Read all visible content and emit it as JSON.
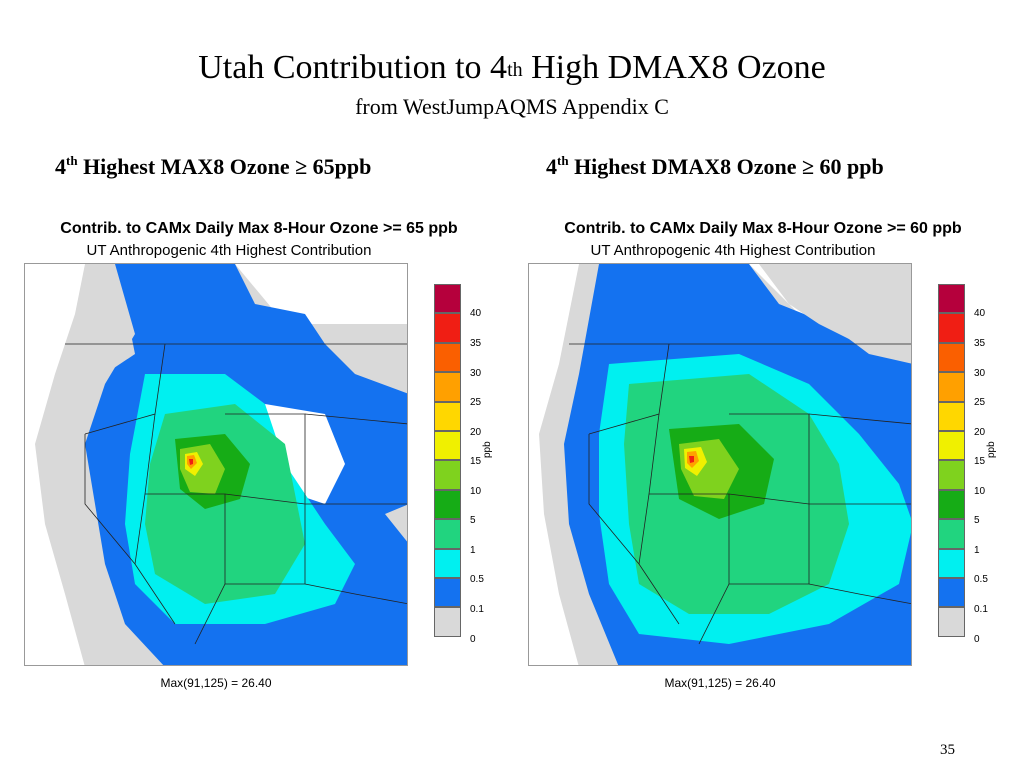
{
  "slide": {
    "title_pre": "Utah Contribution to 4",
    "title_sup": "th",
    "title_post": " High DMAX8 Ozone",
    "subtitle": "from WestJumpAQMS Appendix C",
    "page_number": "35"
  },
  "panels": [
    {
      "heading_pre": "4",
      "heading_sup": "th",
      "heading_post": " Highest MAX8 Ozone ≥ 65ppb",
      "fig_title": "Contrib. to CAMx Daily Max 8-Hour Ozone >= 65 ppb",
      "fig_subtitle": "UT Anthropogenic 4th Highest Contribution",
      "max_label": "Max(91,125) = 26.40"
    },
    {
      "heading_pre": "4",
      "heading_sup": "th",
      "heading_post": " Highest DMAX8 Ozone ≥ 60 ppb",
      "fig_title": "Contrib. to CAMx Daily Max 8-Hour Ozone >= 60 ppb",
      "fig_subtitle": "UT Anthropogenic 4th Highest Contribution",
      "max_label": "Max(91,125) = 26.40"
    }
  ],
  "legend": {
    "unit": "ppb",
    "ticks": [
      "40",
      "35",
      "30",
      "25",
      "20",
      "15",
      "10",
      "5",
      "1",
      "0.5",
      "0.1",
      "0"
    ],
    "colors": [
      "#b5003c",
      "#f01e14",
      "#fa5f00",
      "#ffa000",
      "#ffd700",
      "#f0f000",
      "#7fd21e",
      "#16ac16",
      "#21d47f",
      "#00f0f0",
      "#1472f0",
      "#d9d9d9"
    ]
  }
}
